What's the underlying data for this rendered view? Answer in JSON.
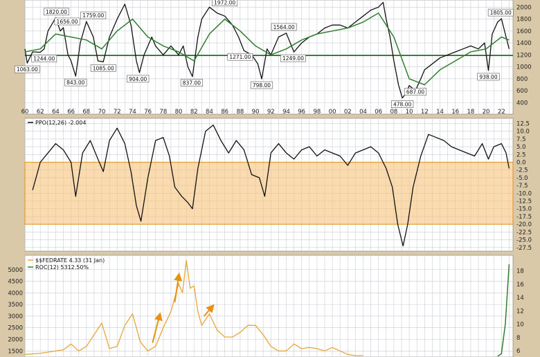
{
  "chart_data": [
    {
      "type": "line",
      "panel": "price",
      "x_ticks": [
        "60",
        "62",
        "64",
        "66",
        "68",
        "70",
        "72",
        "74",
        "76",
        "78",
        "80",
        "82",
        "84",
        "86",
        "88",
        "90",
        "92",
        "94",
        "96",
        "98",
        "00",
        "02",
        "04",
        "06",
        "08",
        "10",
        "12",
        "14",
        "16",
        "18",
        "20",
        "22"
      ],
      "y_ticks": [
        400,
        600,
        800,
        1000,
        1200,
        1400,
        1600,
        1800,
        2000
      ],
      "ylim": [
        300,
        2050
      ],
      "xlim": [
        1960,
        2023.5
      ],
      "horizontal_line": 1190,
      "annotations": [
        {
          "label": "1063.00",
          "x": 1960.3,
          "y": 1063
        },
        {
          "label": "1820.00",
          "x": 1964.1,
          "y": 1820
        },
        {
          "label": "1244.00",
          "x": 1962.5,
          "y": 1244
        },
        {
          "label": "1656.00",
          "x": 1965.5,
          "y": 1656
        },
        {
          "label": "843.00",
          "x": 1966.6,
          "y": 843
        },
        {
          "label": "1759.00",
          "x": 1968.9,
          "y": 1759
        },
        {
          "label": "1085.00",
          "x": 1970.2,
          "y": 1085
        },
        {
          "label": "904.00",
          "x": 1974.7,
          "y": 904
        },
        {
          "label": "837.00",
          "x": 1981.7,
          "y": 837
        },
        {
          "label": "1972.00",
          "x": 1986.0,
          "y": 1972
        },
        {
          "label": "1271.00",
          "x": 1988.0,
          "y": 1271
        },
        {
          "label": "798.00",
          "x": 1990.8,
          "y": 798
        },
        {
          "label": "1564.00",
          "x": 1993.7,
          "y": 1564
        },
        {
          "label": "1249.00",
          "x": 1994.9,
          "y": 1249
        },
        {
          "label": "478.00",
          "x": 2009.1,
          "y": 478
        },
        {
          "label": "687.00",
          "x": 2010.8,
          "y": 687
        },
        {
          "label": "938.00",
          "x": 2020.3,
          "y": 938
        },
        {
          "label": "1805.00",
          "x": 2021.9,
          "y": 1805
        }
      ],
      "series": [
        {
          "color": "#111111",
          "x": [
            1960,
            1960.3,
            1961,
            1962,
            1962.5,
            1963,
            1964,
            1964.6,
            1965,
            1965.6,
            1966,
            1966.6,
            1967.2,
            1968,
            1968.9,
            1969.5,
            1970.2,
            1971,
            1972,
            1973,
            1973.8,
            1974.5,
            1974.9,
            1975.5,
            1976.5,
            1977,
            1978,
            1979,
            1980,
            1980.6,
            1981.2,
            1981.8,
            1982.5,
            1983,
            1984,
            1985,
            1986,
            1987,
            1987.8,
            1988.5,
            1989.5,
            1990.3,
            1990.8,
            1991.5,
            1992,
            1993,
            1994,
            1995,
            1996,
            1997,
            1998,
            1999,
            2000,
            2001,
            2002,
            2003,
            2004,
            2005,
            2006,
            2006.6,
            2007,
            2007.5,
            2008,
            2008.6,
            2009.1,
            2009.6,
            2010,
            2010.8,
            2011.5,
            2012,
            2013,
            2014,
            2015,
            2016,
            2017,
            2018,
            2019,
            2019.8,
            2020.3,
            2020.8,
            2021.5,
            2022,
            2022.5,
            2023
          ],
          "y": [
            1300,
            1063,
            1250,
            1244,
            1300,
            1600,
            1820,
            1600,
            1656,
            1200,
            1100,
            843,
            1400,
            1759,
            1500,
            1100,
            1085,
            1500,
            1800,
            2050,
            1700,
            1100,
            904,
            1200,
            1500,
            1350,
            1200,
            1350,
            1200,
            1350,
            1000,
            837,
            1500,
            1800,
            2000,
            1900,
            1850,
            1700,
            1500,
            1271,
            1200,
            1050,
            798,
            1300,
            1200,
            1500,
            1564,
            1249,
            1400,
            1500,
            1550,
            1650,
            1700,
            1700,
            1650,
            1750,
            1850,
            1950,
            2000,
            2080,
            1800,
            1500,
            1100,
            700,
            478,
            560,
            687,
            600,
            800,
            950,
            1050,
            1150,
            1200,
            1250,
            1300,
            1350,
            1300,
            1400,
            938,
            1550,
            1750,
            1805,
            1550,
            1300
          ]
        },
        {
          "color": "#2f7d2f",
          "x": [
            1960,
            1962,
            1964,
            1966,
            1968,
            1970,
            1972,
            1974,
            1976,
            1978,
            1980,
            1982,
            1984,
            1986,
            1988,
            1990,
            1992,
            1994,
            1996,
            1998,
            2000,
            2002,
            2004,
            2006,
            2008,
            2010,
            2012,
            2014,
            2016,
            2018,
            2020,
            2022,
            2023
          ],
          "y": [
            1250,
            1300,
            1550,
            1500,
            1450,
            1300,
            1600,
            1800,
            1500,
            1350,
            1250,
            1100,
            1550,
            1800,
            1600,
            1350,
            1200,
            1300,
            1450,
            1550,
            1600,
            1650,
            1750,
            1900,
            1500,
            800,
            700,
            950,
            1100,
            1250,
            1300,
            1500,
            1450
          ]
        }
      ]
    },
    {
      "type": "line",
      "panel": "ppo",
      "legend": "PPO(12,26) -2.004",
      "y_ticks": [
        12.5,
        10.0,
        7.5,
        5.0,
        2.5,
        0.0,
        -2.5,
        -5.0,
        -7.5,
        -10.0,
        -12.5,
        -15.0,
        -17.5,
        -20.0,
        -22.5,
        -25.0,
        -27.5
      ],
      "ylim": [
        -28,
        13.5
      ],
      "shaded_range": [
        -20,
        0
      ],
      "series": [
        {
          "color": "#111111",
          "x": [
            1961,
            1962,
            1963,
            1964,
            1965,
            1966,
            1966.6,
            1967.5,
            1968.5,
            1969.5,
            1970.2,
            1971,
            1972,
            1973,
            1973.8,
            1974.5,
            1975.1,
            1976,
            1977,
            1978,
            1978.8,
            1979.5,
            1980.4,
            1981.2,
            1981.8,
            1982.5,
            1983.5,
            1984.5,
            1985.5,
            1986.5,
            1987.5,
            1988.5,
            1989.5,
            1990.5,
            1991.2,
            1992,
            1993,
            1994,
            1995,
            1996,
            1997,
            1998,
            1999,
            2000,
            2001,
            2002,
            2003,
            2004,
            2005,
            2006,
            2007,
            2007.8,
            2008.5,
            2009.2,
            2009.8,
            2010.5,
            2011.5,
            2012.5,
            2013.5,
            2014.5,
            2015.5,
            2016.5,
            2017.5,
            2018.5,
            2019.5,
            2020.3,
            2021,
            2022,
            2022.6,
            2023
          ],
          "y": [
            -9,
            0,
            3,
            6,
            4,
            0,
            -11,
            3,
            7,
            1,
            -3,
            7,
            11,
            6,
            -3,
            -14,
            -19,
            -5,
            7,
            8,
            2,
            -8,
            -11,
            -13,
            -15,
            -2,
            10,
            12,
            7,
            3,
            7,
            4,
            -4,
            -5,
            -11,
            3,
            6,
            3,
            1,
            4,
            5,
            2,
            4,
            3,
            2,
            -1,
            3,
            4,
            5,
            3,
            -2,
            -8,
            -20,
            -27,
            -20,
            -8,
            2,
            9,
            8,
            7,
            5,
            4,
            3,
            2,
            6,
            1,
            5,
            6,
            3,
            -2
          ]
        }
      ]
    },
    {
      "type": "line",
      "panel": "fedrate",
      "legend": [
        "$$FEDRATE 4.33 (31 Jan)",
        "ROC(12) 5312.50%"
      ],
      "y_left_ticks": [
        5000,
        4500,
        4000,
        3500,
        3000,
        2500,
        2000,
        1500
      ],
      "y_right_ticks": [
        18,
        16,
        14,
        12,
        10,
        8,
        6
      ],
      "ylim_left": [
        1300,
        5350
      ],
      "ylim_right": [
        5.3,
        19.4
      ],
      "arrows": [
        {
          "from": [
            1976.6,
            1850
          ],
          "to": [
            1977.5,
            3000
          ]
        },
        {
          "from": [
            1979.5,
            3600
          ],
          "to": [
            1980.0,
            4700
          ]
        },
        {
          "from": [
            1983.3,
            3000
          ],
          "to": [
            1984.3,
            3380
          ]
        }
      ],
      "series": [
        {
          "name": "$$FEDRATE",
          "color": "#e8a53a",
          "x": [
            1960,
            1962,
            1963,
            1964,
            1965,
            1966,
            1967,
            1968,
            1969,
            1970,
            1971,
            1972,
            1973,
            1974,
            1975,
            1976,
            1977,
            1978,
            1979,
            1980,
            1980.5,
            1981,
            1981.5,
            1982,
            1982.5,
            1983,
            1984,
            1985,
            1986,
            1987,
            1988,
            1989,
            1990,
            1991,
            1992,
            1993,
            1994,
            1995,
            1996,
            1997,
            1998,
            1999,
            2000,
            2001,
            2002,
            2003,
            2004
          ],
          "y": [
            1350,
            1400,
            1450,
            1500,
            1550,
            1800,
            1500,
            1700,
            2200,
            2700,
            1600,
            1700,
            2600,
            3100,
            1900,
            1500,
            1700,
            2500,
            3200,
            4400,
            4000,
            5400,
            4200,
            4300,
            3200,
            2600,
            3100,
            2400,
            2100,
            2100,
            2300,
            2600,
            2600,
            2200,
            1700,
            1500,
            1500,
            1800,
            1600,
            1650,
            1600,
            1500,
            1650,
            1500,
            1350,
            1300,
            1300
          ]
        },
        {
          "name": "ROC(12)",
          "color": "#2f7d2f",
          "x": [
            2021.5,
            2022,
            2022.5,
            2023
          ],
          "y": [
            5.2,
            5.6,
            10,
            19
          ]
        }
      ]
    }
  ]
}
